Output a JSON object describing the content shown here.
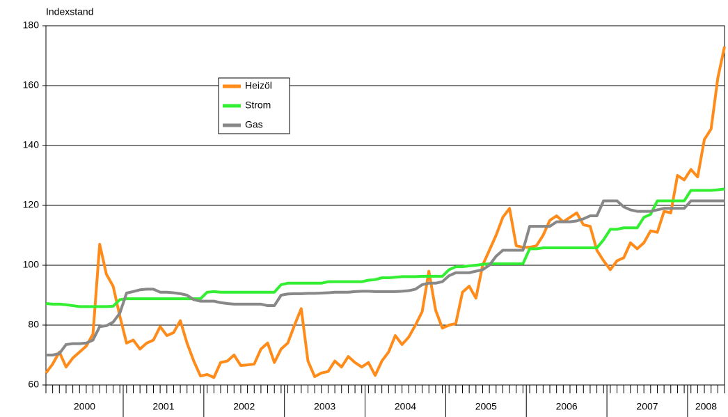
{
  "chart_data": {
    "type": "line",
    "y_label": "Indexstand",
    "categories": [
      "2000",
      null,
      null,
      null,
      null,
      null,
      null,
      null,
      null,
      null,
      null,
      null,
      "2001",
      null,
      null,
      null,
      null,
      null,
      null,
      null,
      null,
      null,
      null,
      null,
      "2002",
      null,
      null,
      null,
      null,
      null,
      null,
      null,
      null,
      null,
      null,
      null,
      "2003",
      null,
      null,
      null,
      null,
      null,
      null,
      null,
      null,
      null,
      null,
      null,
      "2004",
      null,
      null,
      null,
      null,
      null,
      null,
      null,
      null,
      null,
      null,
      null,
      "2005",
      null,
      null,
      null,
      null,
      null,
      null,
      null,
      null,
      null,
      null,
      null,
      "2006",
      null,
      null,
      null,
      null,
      null,
      null,
      null,
      null,
      null,
      null,
      null,
      "2007",
      null,
      null,
      null,
      null,
      null,
      null,
      null,
      null,
      null,
      null,
      null,
      "2008",
      null,
      null,
      null,
      null,
      null
    ],
    "series": [
      {
        "name": "Heizöl",
        "color": "#ff8c1a",
        "values": [
          64,
          67,
          71,
          66,
          69,
          71,
          73,
          77,
          107,
          97,
          93,
          83,
          74,
          75,
          72,
          74,
          75,
          79.5,
          76.5,
          77.5,
          81.5,
          74,
          68,
          63,
          63.5,
          62.5,
          67.5,
          68,
          70,
          66.5,
          66.7,
          67,
          72,
          74,
          67.5,
          72,
          74,
          80,
          85.5,
          68,
          62.8,
          64,
          64.5,
          68,
          66,
          69.5,
          67.5,
          66,
          67.5,
          63.2,
          68,
          71,
          76.5,
          73.5,
          76,
          80,
          84.5,
          98,
          85,
          79,
          80,
          80.5,
          91,
          93,
          89,
          100,
          105,
          110,
          116,
          119,
          106.5,
          106,
          106,
          106.5,
          110,
          115,
          116.5,
          114.5,
          116,
          117.5,
          113.5,
          113,
          105,
          101.5,
          98.5,
          101.5,
          102.5,
          107.5,
          105.5,
          107.5,
          111.5,
          111,
          118,
          117.5,
          130,
          128.5,
          132,
          129.5,
          142,
          145.5,
          162.5,
          173
        ]
      },
      {
        "name": "Strom",
        "color": "#33ee33",
        "values": [
          87.2,
          87,
          87,
          86.8,
          86.5,
          86.2,
          86.2,
          86.2,
          86.2,
          86.2,
          86.3,
          88.5,
          88.8,
          88.8,
          88.8,
          88.8,
          88.8,
          88.8,
          88.8,
          88.8,
          88.8,
          88.8,
          88.8,
          88.8,
          91,
          91.2,
          91,
          91,
          91,
          91,
          91,
          91,
          91,
          91,
          91,
          93.5,
          94,
          94,
          94,
          94,
          94,
          94,
          94.5,
          94.5,
          94.5,
          94.5,
          94.5,
          94.5,
          95,
          95.2,
          95.8,
          95.8,
          96,
          96.2,
          96.2,
          96.2,
          96.3,
          96.3,
          96.3,
          96.3,
          98.5,
          99.5,
          99.5,
          99.8,
          100,
          100.3,
          100.5,
          100.5,
          100.5,
          100.5,
          100.5,
          100.5,
          105.5,
          105.5,
          105.8,
          105.8,
          105.8,
          105.8,
          105.8,
          105.8,
          105.8,
          105.8,
          105.8,
          108.5,
          112,
          112,
          112.5,
          112.5,
          112.5,
          116,
          117,
          121.5,
          121.5,
          121.5,
          121.5,
          121.5,
          125,
          125,
          125,
          125,
          125.2,
          125.5
        ]
      },
      {
        "name": "Gas",
        "color": "#888888",
        "values": [
          70,
          70,
          70.5,
          73.5,
          73.8,
          73.8,
          74,
          75,
          79.5,
          79.8,
          81,
          84,
          90.7,
          91.2,
          91.8,
          92,
          92,
          91,
          91,
          90.8,
          90.5,
          90,
          88.5,
          88,
          88,
          88,
          87.5,
          87.2,
          87,
          87,
          87,
          87,
          87,
          86.5,
          86.5,
          90,
          90.4,
          90.5,
          90.5,
          90.6,
          90.6,
          90.7,
          90.8,
          91,
          91,
          91,
          91.2,
          91.3,
          91.3,
          91.2,
          91.2,
          91.2,
          91.2,
          91.3,
          91.5,
          92,
          93.5,
          94,
          94,
          94.5,
          96.5,
          97.5,
          97.5,
          97.5,
          98,
          98.5,
          100,
          103,
          105,
          105,
          105,
          105,
          113,
          113,
          113,
          113,
          114.5,
          114.5,
          114.5,
          114.8,
          115.5,
          116.5,
          116.5,
          121.5,
          121.5,
          121.5,
          119.5,
          118.5,
          118,
          118,
          118,
          118.5,
          119,
          119,
          119,
          119,
          121.5,
          121.5,
          121.5,
          121.5,
          121.5,
          121.5
        ]
      }
    ],
    "ylim": [
      60,
      180
    ],
    "yticks": [
      60,
      80,
      100,
      120,
      140,
      160,
      180
    ],
    "grid": true
  }
}
